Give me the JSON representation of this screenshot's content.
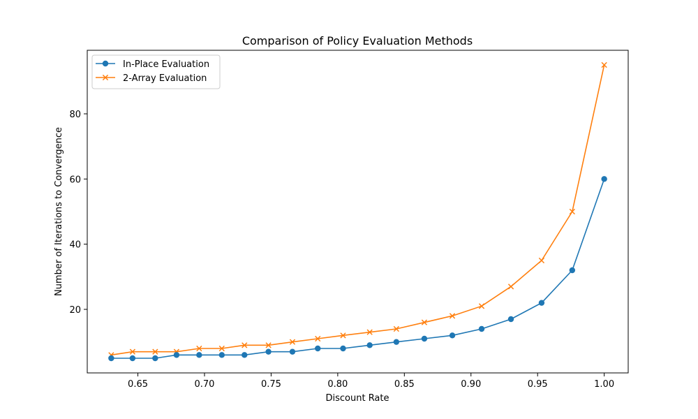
{
  "chart_data": {
    "type": "line",
    "title": "Comparison of Policy Evaluation Methods",
    "xlabel": "Discount Rate",
    "ylabel": "Number of Iterations to Convergence",
    "xlim": [
      0.612,
      1.018
    ],
    "ylim": [
      0.5,
      99.5
    ],
    "xticks": [
      0.65,
      0.7,
      0.75,
      0.8,
      0.85,
      0.9,
      0.95,
      1.0
    ],
    "xtick_labels": [
      "0.65",
      "0.70",
      "0.75",
      "0.80",
      "0.85",
      "0.90",
      "0.95",
      "1.00"
    ],
    "yticks": [
      20,
      40,
      60,
      80
    ],
    "ytick_labels": [
      "20",
      "40",
      "60",
      "80"
    ],
    "x": [
      0.63,
      0.646,
      0.663,
      0.679,
      0.696,
      0.713,
      0.73,
      0.748,
      0.766,
      0.785,
      0.804,
      0.824,
      0.844,
      0.865,
      0.886,
      0.908,
      0.93,
      0.953,
      0.976,
      1.0
    ],
    "series": [
      {
        "name": "In-Place Evaluation",
        "color": "#1f77b4",
        "marker": "circle",
        "values": [
          5,
          5,
          5,
          6,
          6,
          6,
          6,
          7,
          7,
          8,
          8,
          9,
          10,
          11,
          12,
          14,
          17,
          22,
          32,
          60
        ]
      },
      {
        "name": "2-Array Evaluation",
        "color": "#ff7f0e",
        "marker": "x",
        "values": [
          6,
          7,
          7,
          7,
          8,
          8,
          9,
          9,
          10,
          11,
          12,
          13,
          14,
          16,
          18,
          21,
          27,
          35,
          50,
          95
        ]
      }
    ],
    "legend_position": "top-left",
    "grid": false
  }
}
